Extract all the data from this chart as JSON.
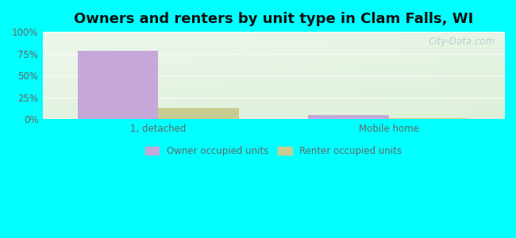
{
  "title": "Owners and renters by unit type in Clam Falls, WI",
  "categories": [
    "1, detached",
    "Mobile home"
  ],
  "owner_values": [
    78.0,
    5.0
  ],
  "renter_values": [
    13.0,
    1.0
  ],
  "owner_color": "#c5a8d8",
  "renter_color": "#c8cc90",
  "bar_width": 0.35,
  "ylim": [
    0,
    100
  ],
  "yticks": [
    0,
    25,
    50,
    75,
    100
  ],
  "ytick_labels": [
    "0%",
    "25%",
    "50%",
    "75%",
    "100%"
  ],
  "title_fontsize": 13,
  "legend_labels": [
    "Owner occupied units",
    "Renter occupied units"
  ],
  "watermark": "City-Data.com",
  "outer_bg": "#00ffff",
  "text_color": "#666666",
  "grid_color": "#ddeedc"
}
